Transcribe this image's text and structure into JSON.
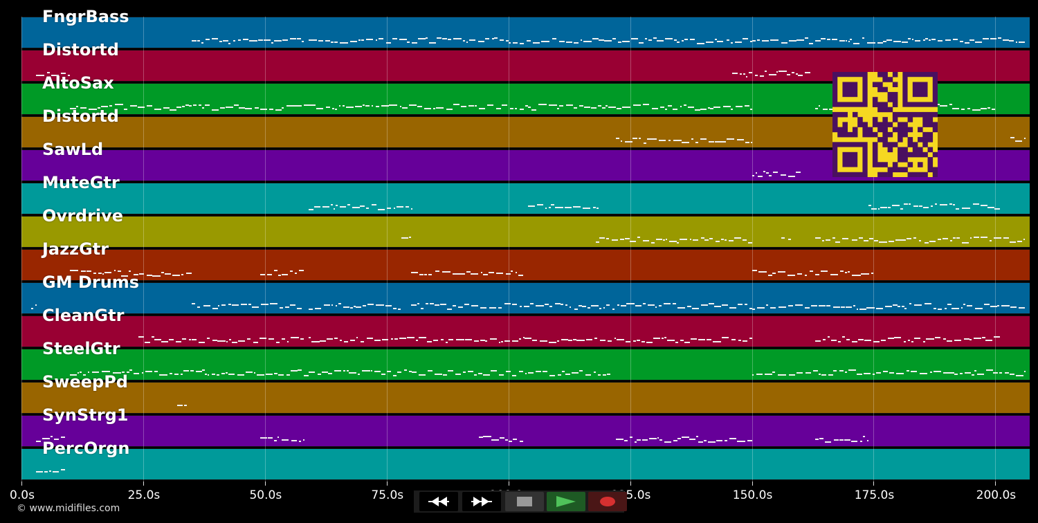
{
  "colors": {
    "background": "#000000",
    "note": "#f2f2f2",
    "qr_fg": "#4a1060",
    "qr_bg": "#f5d821"
  },
  "tracks": [
    {
      "name": "FngrBass",
      "color": "#00659a"
    },
    {
      "name": "Distortd",
      "color": "#990033"
    },
    {
      "name": "AltoSax",
      "color": "#009a26"
    },
    {
      "name": "Distortd",
      "color": "#996500"
    },
    {
      "name": "SawLd",
      "color": "#660099"
    },
    {
      "name": "MuteGtr",
      "color": "#009a9a"
    },
    {
      "name": "Ovrdrive",
      "color": "#999900"
    },
    {
      "name": "JazzGtr",
      "color": "#992600"
    },
    {
      "name": "GM Drums",
      "color": "#00659a"
    },
    {
      "name": "CleanGtr",
      "color": "#990033"
    },
    {
      "name": "SteelGtr",
      "color": "#009a26"
    },
    {
      "name": "SweepPd",
      "color": "#996500"
    },
    {
      "name": "SynStrg1",
      "color": "#660099"
    },
    {
      "name": "PercOrgn",
      "color": "#009a9a"
    }
  ],
  "timeline": {
    "max_seconds": 207,
    "ticks": [
      "0.0s",
      "25.0s",
      "50.0s",
      "75.0s",
      "100.0s",
      "125.0s",
      "150.0s",
      "175.0s",
      "200.0s"
    ],
    "tick_values": [
      0,
      25,
      50,
      75,
      100,
      125,
      150,
      175,
      200
    ]
  },
  "note_segments": [
    [
      [
        35,
        58
      ],
      [
        59,
        100
      ],
      [
        100,
        150
      ],
      [
        150,
        206
      ]
    ],
    [
      [
        3,
        10
      ],
      [
        146,
        162
      ]
    ],
    [
      [
        10,
        59
      ],
      [
        59,
        104
      ],
      [
        104,
        150
      ],
      [
        163,
        200
      ]
    ],
    [
      [
        122,
        150
      ],
      [
        203,
        206
      ]
    ],
    [
      [
        150,
        160
      ]
    ],
    [
      [
        59,
        80
      ],
      [
        104,
        119
      ],
      [
        174,
        201
      ]
    ],
    [
      [
        78,
        80
      ],
      [
        118,
        150
      ],
      [
        156,
        158
      ],
      [
        163,
        206
      ]
    ],
    [
      [
        10,
        35
      ],
      [
        49,
        58
      ],
      [
        80,
        103
      ],
      [
        150,
        175
      ]
    ],
    [
      [
        2,
        3
      ],
      [
        35,
        58
      ],
      [
        59,
        78
      ],
      [
        80,
        104
      ],
      [
        104,
        150
      ],
      [
        150,
        206
      ]
    ],
    [
      [
        24,
        58
      ],
      [
        59,
        104
      ],
      [
        104,
        150
      ],
      [
        163,
        201
      ]
    ],
    [
      [
        10,
        59
      ],
      [
        59,
        104
      ],
      [
        104,
        121
      ],
      [
        150,
        206
      ]
    ],
    [
      [
        32,
        34
      ]
    ],
    [
      [
        3,
        9
      ],
      [
        49,
        58
      ],
      [
        94,
        103
      ],
      [
        122,
        150
      ],
      [
        163,
        174
      ]
    ],
    [
      [
        3,
        9
      ]
    ]
  ],
  "icons": {
    "rewind": "rewind-icon",
    "fast_forward": "fast-forward-icon",
    "stop": "stop-icon",
    "play": "play-icon",
    "record": "record-icon",
    "qr": "qr-code-icon"
  },
  "copyright": "© www.midifiles.com"
}
